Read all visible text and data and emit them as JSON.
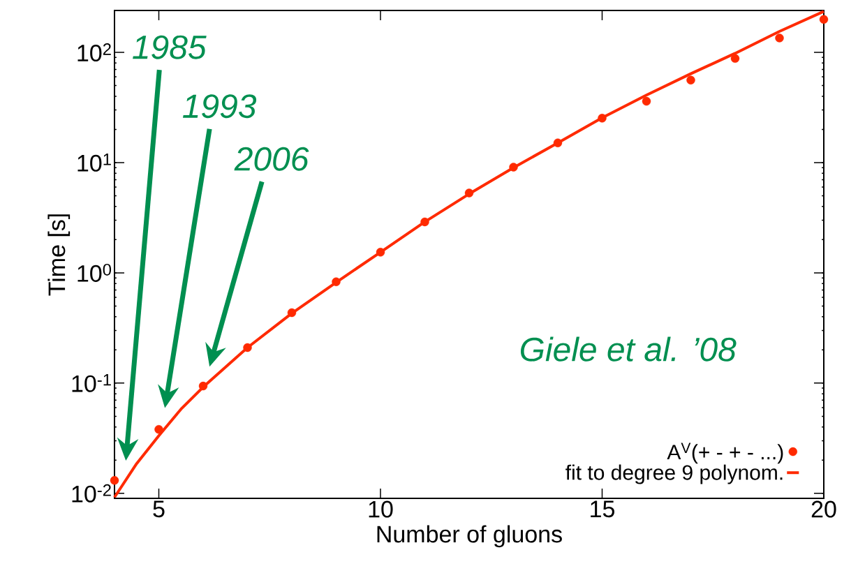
{
  "chart_data": {
    "type": "scatter",
    "xlabel": "Number of gluons",
    "ylabel": "Time [s]",
    "x": [
      4,
      5,
      6,
      7,
      8,
      9,
      10,
      11,
      12,
      13,
      14,
      15,
      16,
      17,
      18,
      19,
      20
    ],
    "series": [
      {
        "name": "A$^{V}$(+ - + - ...)",
        "marker": "circle",
        "color": "#ff2a00",
        "values": [
          0.0131,
          0.038,
          0.094,
          0.21,
          0.435,
          0.83,
          1.54,
          2.9,
          5.3,
          9.1,
          15.1,
          25.3,
          36,
          56,
          88,
          135,
          199
        ]
      },
      {
        "name": "fit to degree 9 polynom.",
        "type": "line",
        "marker": "none",
        "color": "#ff2a00",
        "x": [
          4,
          4.5,
          5,
          5.5,
          6,
          7,
          8,
          9,
          10,
          11,
          12,
          13,
          14,
          15,
          16,
          17,
          18,
          19,
          20
        ],
        "values": [
          0.0092,
          0.0186,
          0.0333,
          0.058,
          0.092,
          0.21,
          0.43,
          0.82,
          1.54,
          2.9,
          5.2,
          9.0,
          15.1,
          25.5,
          41,
          64,
          98,
          155,
          235
        ]
      }
    ],
    "xlim": [
      4,
      20
    ],
    "ylim": [
      0.009,
      240
    ],
    "xticks": [
      5,
      10,
      15,
      20
    ],
    "yticks": [
      {
        "value": 0.01,
        "label": "10$^{-2}$"
      },
      {
        "value": 0.1,
        "label": "10$^{-1}$"
      },
      {
        "value": 1,
        "label": "10$^{0}$"
      },
      {
        "value": 10,
        "label": "10$^{1}$"
      },
      {
        "value": 100,
        "label": "10$^{2}$"
      }
    ],
    "log": "y",
    "legend": "bottom right",
    "annotations": [
      "1985",
      "1993",
      "2006",
      "Giele et al. ’08"
    ]
  }
}
